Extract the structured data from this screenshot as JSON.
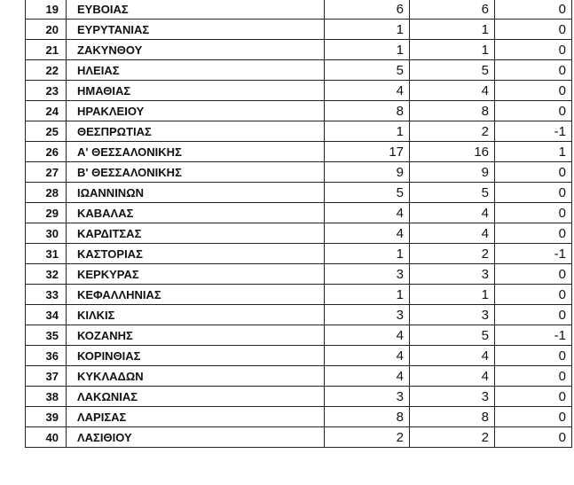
{
  "table": {
    "rows": [
      {
        "no": "19",
        "name": "ΕΥΒΟΙΑΣ",
        "a": "6",
        "b": "6",
        "diff": "0"
      },
      {
        "no": "20",
        "name": "ΕΥΡΥΤΑΝΙΑΣ",
        "a": "1",
        "b": "1",
        "diff": "0"
      },
      {
        "no": "21",
        "name": "ΖΑΚΥΝΘΟΥ",
        "a": "1",
        "b": "1",
        "diff": "0"
      },
      {
        "no": "22",
        "name": "ΗΛΕΙΑΣ",
        "a": "5",
        "b": "5",
        "diff": "0"
      },
      {
        "no": "23",
        "name": "ΗΜΑΘΙΑΣ",
        "a": "4",
        "b": "4",
        "diff": "0"
      },
      {
        "no": "24",
        "name": "ΗΡΑΚΛΕΙΟΥ",
        "a": "8",
        "b": "8",
        "diff": "0"
      },
      {
        "no": "25",
        "name": "ΘΕΣΠΡΩΤΙΑΣ",
        "a": "1",
        "b": "2",
        "diff": "-1"
      },
      {
        "no": "26",
        "name": "Α' ΘΕΣΣΑΛΟΝΙΚΗΣ",
        "a": "17",
        "b": "16",
        "diff": "1"
      },
      {
        "no": "27",
        "name": "Β' ΘΕΣΣΑΛΟΝΙΚΗΣ",
        "a": "9",
        "b": "9",
        "diff": "0"
      },
      {
        "no": "28",
        "name": "ΙΩΑΝΝΙΝΩΝ",
        "a": "5",
        "b": "5",
        "diff": "0"
      },
      {
        "no": "29",
        "name": "ΚΑΒΑΛΑΣ",
        "a": "4",
        "b": "4",
        "diff": "0"
      },
      {
        "no": "30",
        "name": "ΚΑΡΔΙΤΣΑΣ",
        "a": "4",
        "b": "4",
        "diff": "0"
      },
      {
        "no": "31",
        "name": "ΚΑΣΤΟΡΙΑΣ",
        "a": "1",
        "b": "2",
        "diff": "-1"
      },
      {
        "no": "32",
        "name": "ΚΕΡΚΥΡΑΣ",
        "a": "3",
        "b": "3",
        "diff": "0"
      },
      {
        "no": "33",
        "name": "ΚΕΦΑΛΛΗΝΙΑΣ",
        "a": "1",
        "b": "1",
        "diff": "0"
      },
      {
        "no": "34",
        "name": "ΚΙΛΚΙΣ",
        "a": "3",
        "b": "3",
        "diff": "0"
      },
      {
        "no": "35",
        "name": "ΚΟΖΑΝΗΣ",
        "a": "4",
        "b": "5",
        "diff": "-1"
      },
      {
        "no": "36",
        "name": "ΚΟΡΙΝΘΙΑΣ",
        "a": "4",
        "b": "4",
        "diff": "0"
      },
      {
        "no": "37",
        "name": "ΚΥΚΛΑΔΩΝ",
        "a": "4",
        "b": "4",
        "diff": "0"
      },
      {
        "no": "38",
        "name": "ΛΑΚΩΝΙΑΣ",
        "a": "3",
        "b": "3",
        "diff": "0"
      },
      {
        "no": "39",
        "name": "ΛΑΡΙΣΑΣ",
        "a": "8",
        "b": "8",
        "diff": "0"
      },
      {
        "no": "40",
        "name": "ΛΑΣΙΘΙΟΥ",
        "a": "2",
        "b": "2",
        "diff": "0"
      }
    ]
  }
}
